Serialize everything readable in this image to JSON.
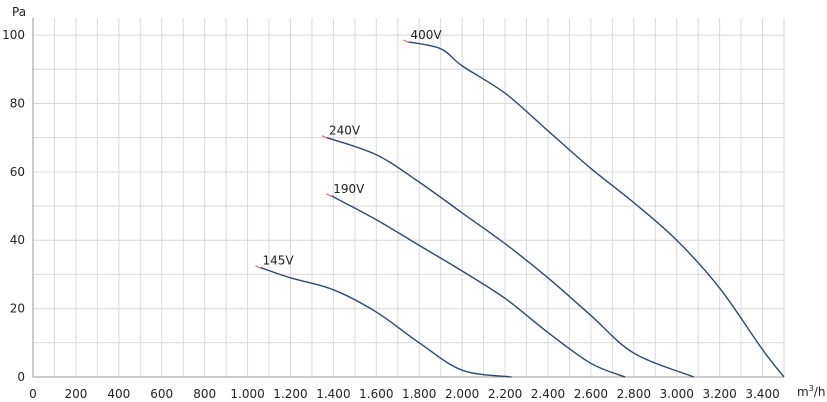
{
  "chart_data": {
    "type": "line",
    "ylabel": "Pa",
    "xlabel_base": "m",
    "xlabel_sup": "3",
    "xlabel_tail": "/h",
    "xlim": [
      0,
      3500
    ],
    "ylim": [
      0,
      105
    ],
    "x_ticks": [
      {
        "value": 0,
        "label": "0"
      },
      {
        "value": 200,
        "label": "200"
      },
      {
        "value": 400,
        "label": "400"
      },
      {
        "value": 600,
        "label": "600"
      },
      {
        "value": 800,
        "label": "800"
      },
      {
        "value": 1000,
        "label": "1.000"
      },
      {
        "value": 1200,
        "label": "1.200"
      },
      {
        "value": 1400,
        "label": "1.400"
      },
      {
        "value": 1600,
        "label": "1.600"
      },
      {
        "value": 1800,
        "label": "1.800"
      },
      {
        "value": 2000,
        "label": "2.000"
      },
      {
        "value": 2200,
        "label": "2.200"
      },
      {
        "value": 2400,
        "label": "2.400"
      },
      {
        "value": 2600,
        "label": "2.600"
      },
      {
        "value": 2800,
        "label": "2.800"
      },
      {
        "value": 3000,
        "label": "3.000"
      },
      {
        "value": 3200,
        "label": "3.200"
      },
      {
        "value": 3400,
        "label": "3.400"
      }
    ],
    "x_minor_step": 100,
    "y_ticks": [
      {
        "value": 0,
        "label": "0"
      },
      {
        "value": 20,
        "label": "20"
      },
      {
        "value": 40,
        "label": "40"
      },
      {
        "value": 60,
        "label": "60"
      },
      {
        "value": 80,
        "label": "80"
      },
      {
        "value": 100,
        "label": "100"
      }
    ],
    "y_minor_step": 10,
    "grid": true,
    "series": [
      {
        "name": "145V",
        "points": [
          [
            1060,
            32
          ],
          [
            1200,
            29
          ],
          [
            1400,
            25.5
          ],
          [
            1600,
            19
          ],
          [
            1800,
            10
          ],
          [
            2000,
            2
          ],
          [
            2230,
            0
          ]
        ]
      },
      {
        "name": "190V",
        "points": [
          [
            1390,
            53
          ],
          [
            1600,
            46
          ],
          [
            1800,
            38.5
          ],
          [
            2000,
            31
          ],
          [
            2200,
            23
          ],
          [
            2400,
            13
          ],
          [
            2600,
            4
          ],
          [
            2760,
            0
          ]
        ]
      },
      {
        "name": "240V",
        "points": [
          [
            1370,
            70
          ],
          [
            1600,
            65
          ],
          [
            1800,
            57
          ],
          [
            2000,
            48
          ],
          [
            2200,
            39
          ],
          [
            2400,
            29
          ],
          [
            2600,
            18
          ],
          [
            2800,
            7
          ],
          [
            3080,
            0
          ]
        ]
      },
      {
        "name": "400V",
        "points": [
          [
            1750,
            98
          ],
          [
            1900,
            96
          ],
          [
            2000,
            91
          ],
          [
            2200,
            83
          ],
          [
            2400,
            72
          ],
          [
            2600,
            61
          ],
          [
            2800,
            51
          ],
          [
            3000,
            40
          ],
          [
            3200,
            26
          ],
          [
            3400,
            8
          ],
          [
            3500,
            0
          ]
        ]
      }
    ]
  }
}
